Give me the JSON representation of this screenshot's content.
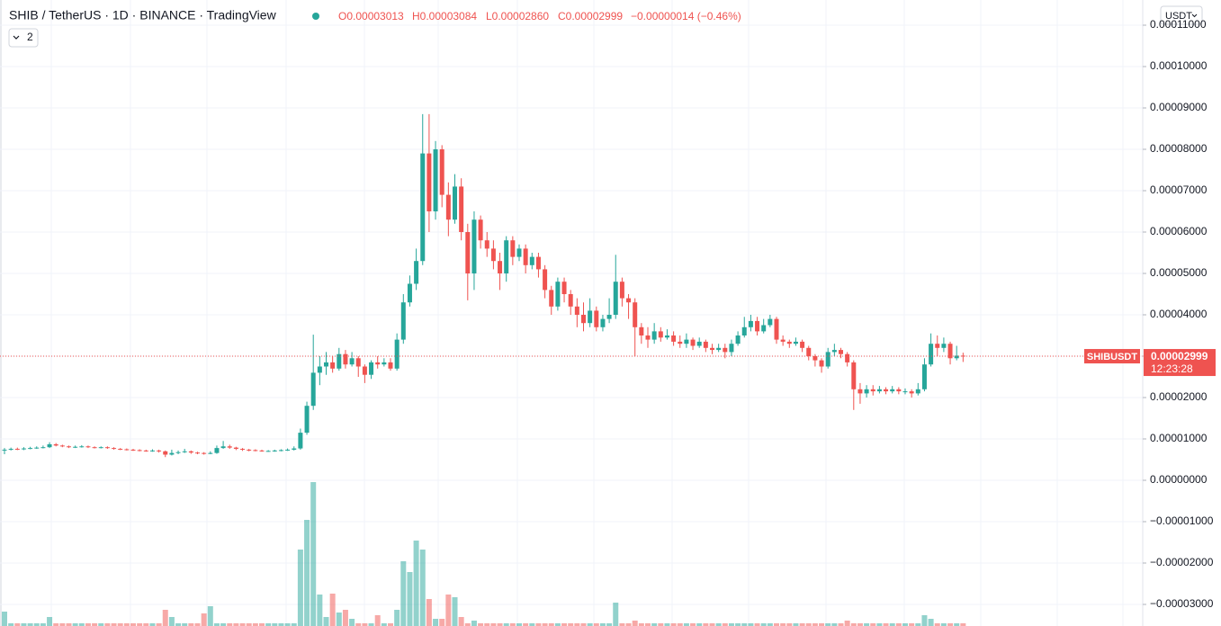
{
  "header": {
    "title": "SHIB / TetherUS · 1D · BINANCE · TradingView",
    "ohlc": [
      "O0.00003013",
      "H0.00003084",
      "L0.00002860",
      "C0.00002999",
      "−0.00000014 (−0.46%)"
    ],
    "indicator_count": "2",
    "currency": "USDT"
  },
  "chart_data": {
    "type": "candlestick",
    "symbol": "SHIBUSDT",
    "last_price": "0.00002999",
    "countdown": "12:23:28",
    "up_color": "#26a69a",
    "down_color": "#ef5350",
    "grid": true,
    "ylim": [
      -3.522e-05,
      0.00011609
    ],
    "yticks": [
      {
        "value": 0.00011,
        "label": "0.00011000"
      },
      {
        "value": 0.0001,
        "label": "0.00010000"
      },
      {
        "value": 9e-05,
        "label": "0.00009000"
      },
      {
        "value": 8e-05,
        "label": "0.00008000"
      },
      {
        "value": 7e-05,
        "label": "0.00007000"
      },
      {
        "value": 6e-05,
        "label": "0.00006000"
      },
      {
        "value": 5e-05,
        "label": "0.00005000"
      },
      {
        "value": 4e-05,
        "label": "0.00004000"
      },
      {
        "value": 3e-05,
        "label": "0.00003000"
      },
      {
        "value": 2e-05,
        "label": "0.00002000"
      },
      {
        "value": 1e-05,
        "label": "0.00001000"
      },
      {
        "value": 0,
        "label": "0.00000000"
      },
      {
        "value": -1e-05,
        "label": "−0.00001000"
      },
      {
        "value": -2e-05,
        "label": "−0.00002000"
      },
      {
        "value": -3e-05,
        "label": "−0.00003000"
      }
    ],
    "open": [
      7.2e-06,
      7.4e-06,
      7.6e-06,
      7.5e-06,
      7.7e-06,
      7.8e-06,
      7.9e-06,
      8e-06,
      8.7e-06,
      8.4e-06,
      8.2e-06,
      8e-06,
      8.1e-06,
      8.2e-06,
      8e-06,
      7.9e-06,
      8e-06,
      7.8e-06,
      7.6e-06,
      7.5e-06,
      7.4e-06,
      7.3e-06,
      7.2e-06,
      7.1e-06,
      7.2e-06,
      7e-06,
      6.2e-06,
      6.6e-06,
      6.8e-06,
      7e-06,
      6.7e-06,
      6.6e-06,
      6.5e-06,
      6.6e-06,
      7.8e-06,
      8.2e-06,
      7.9e-06,
      7.6e-06,
      7.4e-06,
      7.3e-06,
      7.2e-06,
      7.1e-06,
      7.1e-06,
      7.2e-06,
      7.3e-06,
      7.4e-06,
      7.7e-06,
      1.15e-05,
      1.8e-05,
      2.6e-05,
      2.75e-05,
      2.85e-05,
      2.7e-05,
      3.05e-05,
      2.8e-05,
      2.95e-05,
      2.75e-05,
      2.55e-05,
      2.85e-05,
      2.8e-05,
      2.85e-05,
      2.7e-05,
      3.4e-05,
      4.3e-05,
      4.75e-05,
      5.3e-05,
      7.9e-05,
      6.5e-05,
      8e-05,
      6.9e-05,
      6.3e-05,
      7.1e-05,
      6e-05,
      5e-05,
      6.3e-05,
      5.8e-05,
      5.6e-05,
      5.3e-05,
      5e-05,
      5.8e-05,
      5.4e-05,
      5.6e-05,
      5.2e-05,
      5.4e-05,
      5.1e-05,
      4.6e-05,
      4.2e-05,
      4.8e-05,
      4.5e-05,
      4.2e-05,
      4e-05,
      3.8e-05,
      4.1e-05,
      3.7e-05,
      3.9e-05,
      4e-05,
      4.8e-05,
      4.4e-05,
      4.3e-05,
      3.7e-05,
      3.5e-05,
      3.4e-05,
      3.6e-05,
      3.45e-05,
      3.5e-05,
      3.35e-05,
      3.3e-05,
      3.4e-05,
      3.25e-05,
      3.35e-05,
      3.2e-05,
      3.15e-05,
      3.2e-05,
      3.1e-05,
      3.3e-05,
      3.5e-05,
      3.7e-05,
      3.85e-05,
      3.6e-05,
      3.75e-05,
      3.9e-05,
      3.4e-05,
      3.35e-05,
      3.3e-05,
      3.35e-05,
      3.2e-05,
      3e-05,
      2.9e-05,
      2.75e-05,
      3.1e-05,
      3.15e-05,
      3.05e-05,
      2.85e-05,
      2.2e-05,
      2.1e-05,
      2.2e-05,
      2.15e-05,
      2.2e-05,
      2.15e-05,
      2.2e-05,
      2.15e-05,
      2.15e-05,
      2.1e-05,
      2.2e-05,
      2.8e-05,
      3.3e-05,
      3.2e-05,
      3.3e-05,
      2.95e-05,
      3.013e-05
    ],
    "high": [
      7.8e-06,
      7.9e-06,
      7.9e-06,
      8e-06,
      8.1e-06,
      8.2e-06,
      8.4e-06,
      9.2e-06,
      9e-06,
      8.6e-06,
      8.4e-06,
      8.4e-06,
      8.5e-06,
      8.4e-06,
      8.2e-06,
      8.2e-06,
      8.2e-06,
      8e-06,
      7.8e-06,
      7.7e-06,
      7.6e-06,
      7.5e-06,
      7.4e-06,
      7.5e-06,
      7.4e-06,
      7.2e-06,
      7.4e-06,
      7.2e-06,
      7.6e-06,
      7.2e-06,
      6.9e-06,
      6.8e-06,
      7e-06,
      8.4e-06,
      9.5e-06,
      8.6e-06,
      8.1e-06,
      7.8e-06,
      7.6e-06,
      7.5e-06,
      7.4e-06,
      7.3e-06,
      7.4e-06,
      7.5e-06,
      7.7e-06,
      8.2e-06,
      1.25e-05,
      1.9e-05,
      3.52e-05,
      3e-05,
      3.1e-05,
      3e-05,
      3.2e-05,
      3.15e-05,
      3.1e-05,
      3e-05,
      2.8e-05,
      2.9e-05,
      3e-05,
      2.95e-05,
      2.95e-05,
      3.55e-05,
      4.5e-05,
      4.95e-05,
      5.6e-05,
      8.85e-05,
      8.85e-05,
      8.2e-05,
      8.1e-05,
      7.2e-05,
      7.4e-05,
      7.3e-05,
      6.2e-05,
      6.5e-05,
      6.4e-05,
      6e-05,
      5.8e-05,
      5.5e-05,
      5.9e-05,
      5.9e-05,
      5.7e-05,
      5.7e-05,
      5.5e-05,
      5.5e-05,
      5.2e-05,
      4.7e-05,
      4.9e-05,
      4.9e-05,
      4.6e-05,
      4.4e-05,
      4.3e-05,
      4.4e-05,
      4.2e-05,
      4e-05,
      4.4e-05,
      5.45e-05,
      4.9e-05,
      4.5e-05,
      4.4e-05,
      3.8e-05,
      3.7e-05,
      3.8e-05,
      3.7e-05,
      3.65e-05,
      3.6e-05,
      3.5e-05,
      3.55e-05,
      3.45e-05,
      3.45e-05,
      3.4e-05,
      3.3e-05,
      3.3e-05,
      3.3e-05,
      3.4e-05,
      3.6e-05,
      3.95e-05,
      4e-05,
      3.95e-05,
      3.9e-05,
      4e-05,
      3.95e-05,
      3.5e-05,
      3.4e-05,
      3.45e-05,
      3.4e-05,
      3.25e-05,
      3.05e-05,
      2.95e-05,
      3.2e-05,
      3.3e-05,
      3.2e-05,
      3.1e-05,
      2.9e-05,
      2.35e-05,
      2.3e-05,
      2.3e-05,
      2.28e-05,
      2.25e-05,
      2.28e-05,
      2.25e-05,
      2.22e-05,
      2.2e-05,
      2.35e-05,
      2.95e-05,
      3.55e-05,
      3.5e-05,
      3.45e-05,
      3.35e-05,
      3.25e-05,
      3.084e-05
    ],
    "low": [
      6.3e-06,
      7.2e-06,
      7.3e-06,
      7.3e-06,
      7.5e-06,
      7.6e-06,
      7.7e-06,
      7.8e-06,
      8.2e-06,
      8e-06,
      7.8e-06,
      7.8e-06,
      7.9e-06,
      7.8e-06,
      7.7e-06,
      7.7e-06,
      7.6e-06,
      7.4e-06,
      7.3e-06,
      7.2e-06,
      7.1e-06,
      7e-06,
      6.9e-06,
      6.9e-06,
      6.7e-06,
      5.6e-06,
      6e-06,
      6.3e-06,
      6.6e-06,
      6.4e-06,
      6.3e-06,
      6.2e-06,
      6.3e-06,
      6.4e-06,
      7.6e-06,
      7.6e-06,
      7.3e-06,
      7.1e-06,
      7e-06,
      7e-06,
      6.9e-06,
      6.9e-06,
      6.9e-06,
      7e-06,
      7.1e-06,
      7.2e-06,
      7.4e-06,
      1.1e-05,
      1.7e-05,
      2.3e-05,
      2.55e-05,
      2.6e-05,
      2.65e-05,
      2.7e-05,
      2.75e-05,
      2.5e-05,
      2.35e-05,
      2.45e-05,
      2.7e-05,
      2.75e-05,
      2.65e-05,
      2.65e-05,
      3.3e-05,
      4.2e-05,
      4.6e-05,
      5.2e-05,
      6e-05,
      6.3e-05,
      6.6e-05,
      5.9e-05,
      6.2e-05,
      5.8e-05,
      4.35e-05,
      4.6e-05,
      5.6e-05,
      5.4e-05,
      5.1e-05,
      4.6e-05,
      4.8e-05,
      5.2e-05,
      5.3e-05,
      5e-05,
      5.1e-05,
      4.9e-05,
      4.4e-05,
      4e-05,
      4.1e-05,
      4.3e-05,
      4e-05,
      3.7e-05,
      3.6e-05,
      3.7e-05,
      3.6e-05,
      3.6e-05,
      3.8e-05,
      3.9e-05,
      4.2e-05,
      3.9e-05,
      3e-05,
      3.3e-05,
      3.2e-05,
      3.3e-05,
      3.35e-05,
      3.4e-05,
      3.25e-05,
      3.2e-05,
      3.2e-05,
      3.15e-05,
      3.2e-05,
      3.1e-05,
      3.05e-05,
      3.1e-05,
      2.95e-05,
      3e-05,
      3.25e-05,
      3.45e-05,
      3.6e-05,
      3.5e-05,
      3.55e-05,
      3.7e-05,
      3.3e-05,
      3.25e-05,
      3.2e-05,
      3.25e-05,
      3.1e-05,
      2.9e-05,
      2.75e-05,
      2.6e-05,
      2.7e-05,
      3e-05,
      2.95e-05,
      2.75e-05,
      1.7e-05,
      1.85e-05,
      2e-05,
      2.05e-05,
      2.1e-05,
      2.08e-05,
      2.1e-05,
      2.08e-05,
      2.08e-05,
      2e-05,
      2.05e-05,
      2.15e-05,
      2.75e-05,
      3e-05,
      3.1e-05,
      2.8e-05,
      2.9e-05,
      2.86e-05
    ],
    "close": [
      7.4e-06,
      7.6e-06,
      7.5e-06,
      7.7e-06,
      7.8e-06,
      7.9e-06,
      8e-06,
      8.7e-06,
      8.4e-06,
      8.2e-06,
      8e-06,
      8.1e-06,
      8.2e-06,
      8e-06,
      7.9e-06,
      8e-06,
      7.8e-06,
      7.6e-06,
      7.5e-06,
      7.4e-06,
      7.3e-06,
      7.2e-06,
      7.1e-06,
      7.2e-06,
      7e-06,
      6.2e-06,
      6.6e-06,
      6.8e-06,
      7e-06,
      6.7e-06,
      6.6e-06,
      6.5e-06,
      6.6e-06,
      7.8e-06,
      8.2e-06,
      7.9e-06,
      7.6e-06,
      7.4e-06,
      7.3e-06,
      7.2e-06,
      7.1e-06,
      7.1e-06,
      7.2e-06,
      7.3e-06,
      7.4e-06,
      7.7e-06,
      1.15e-05,
      1.8e-05,
      2.6e-05,
      2.75e-05,
      2.85e-05,
      2.7e-05,
      3.05e-05,
      2.8e-05,
      2.95e-05,
      2.75e-05,
      2.55e-05,
      2.85e-05,
      2.8e-05,
      2.85e-05,
      2.7e-05,
      3.4e-05,
      4.3e-05,
      4.75e-05,
      5.3e-05,
      7.9e-05,
      6.5e-05,
      8e-05,
      6.9e-05,
      6.3e-05,
      7.1e-05,
      6e-05,
      5e-05,
      6.3e-05,
      5.8e-05,
      5.6e-05,
      5.3e-05,
      5e-05,
      5.8e-05,
      5.4e-05,
      5.6e-05,
      5.2e-05,
      5.4e-05,
      5.1e-05,
      4.6e-05,
      4.2e-05,
      4.8e-05,
      4.5e-05,
      4.2e-05,
      4e-05,
      3.8e-05,
      4.1e-05,
      3.7e-05,
      3.9e-05,
      4e-05,
      4.8e-05,
      4.4e-05,
      4.3e-05,
      3.7e-05,
      3.5e-05,
      3.4e-05,
      3.6e-05,
      3.45e-05,
      3.5e-05,
      3.35e-05,
      3.3e-05,
      3.4e-05,
      3.25e-05,
      3.35e-05,
      3.2e-05,
      3.15e-05,
      3.2e-05,
      3.1e-05,
      3.3e-05,
      3.5e-05,
      3.7e-05,
      3.85e-05,
      3.6e-05,
      3.75e-05,
      3.9e-05,
      3.4e-05,
      3.35e-05,
      3.3e-05,
      3.35e-05,
      3.2e-05,
      3e-05,
      2.9e-05,
      2.75e-05,
      3.1e-05,
      3.15e-05,
      3.05e-05,
      2.85e-05,
      2.2e-05,
      2.1e-05,
      2.2e-05,
      2.15e-05,
      2.2e-05,
      2.15e-05,
      2.2e-05,
      2.15e-05,
      2.15e-05,
      2.1e-05,
      2.2e-05,
      2.8e-05,
      3.3e-05,
      3.2e-05,
      3.3e-05,
      2.95e-05,
      3.013e-05,
      2.999e-05
    ],
    "volume": [
      16,
      3,
      3,
      3,
      3,
      3,
      3,
      10,
      3,
      3,
      3,
      3,
      3,
      3,
      3,
      3,
      3,
      3,
      3,
      3,
      3,
      3,
      3,
      3,
      3,
      18,
      10,
      3,
      3,
      3,
      3,
      14,
      22,
      3,
      3,
      3,
      3,
      3,
      3,
      3,
      3,
      3,
      3,
      3,
      3,
      3,
      85,
      118,
      160,
      35,
      10,
      36,
      15,
      18,
      8,
      3,
      3,
      3,
      12,
      3,
      3,
      18,
      72,
      60,
      95,
      85,
      30,
      8,
      8,
      35,
      32,
      10,
      3,
      6,
      3,
      3,
      3,
      3,
      3,
      3,
      3,
      3,
      3,
      3,
      3,
      3,
      3,
      3,
      3,
      3,
      3,
      3,
      3,
      3,
      3,
      26,
      3,
      3,
      6,
      3,
      3,
      3,
      3,
      3,
      3,
      3,
      3,
      3,
      3,
      3,
      3,
      3,
      3,
      3,
      3,
      3,
      3,
      3,
      3,
      3,
      3,
      3,
      3,
      3,
      3,
      3,
      3,
      3,
      3,
      3,
      3,
      6,
      3,
      3,
      3,
      3,
      3,
      3,
      3,
      3,
      3,
      3,
      3,
      12,
      8,
      3,
      3,
      3,
      3,
      3
    ]
  }
}
